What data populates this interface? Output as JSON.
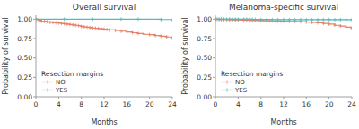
{
  "chart_data": [
    {
      "type": "step",
      "title": "Overall survival",
      "x_label": "Months",
      "y_label": "Probability of survival",
      "legend_title": "Resection margins",
      "legend": "lower left",
      "grid": false,
      "xlim": [
        0,
        24
      ],
      "ylim": [
        0.0,
        1.05
      ],
      "xticks": [
        0,
        4,
        8,
        12,
        16,
        20,
        24
      ],
      "yticks": [
        {
          "value": 0.0,
          "label": "0.00"
        },
        0.25,
        {
          "value": 0.5,
          "label": "0.50"
        },
        0.75,
        {
          "value": 1.0,
          "label": "1.00"
        }
      ],
      "series": [
        {
          "name": "NO",
          "color": "#E8816A",
          "marker": "+",
          "x": [
            0,
            0.5,
            1,
            1.5,
            2,
            2.5,
            3,
            3.5,
            4,
            4.5,
            5,
            5.5,
            6,
            6.5,
            7,
            7.5,
            8,
            8.5,
            9,
            9.5,
            10,
            10.5,
            11,
            11.5,
            12,
            12.5,
            13,
            14,
            15,
            16,
            17,
            18,
            19,
            20,
            21,
            22,
            23,
            24
          ],
          "values": [
            1.0,
            0.985,
            0.975,
            0.97,
            0.965,
            0.96,
            0.957,
            0.953,
            0.95,
            0.945,
            0.94,
            0.935,
            0.93,
            0.925,
            0.92,
            0.915,
            0.905,
            0.9,
            0.895,
            0.89,
            0.885,
            0.882,
            0.878,
            0.875,
            0.87,
            0.865,
            0.86,
            0.855,
            0.845,
            0.835,
            0.825,
            0.815,
            0.805,
            0.8,
            0.79,
            0.78,
            0.77,
            0.755
          ]
        },
        {
          "name": "YES",
          "color": "#4DBDBD",
          "marker": "+",
          "x": [
            0,
            5,
            10,
            15,
            18,
            22,
            24
          ],
          "values": [
            1.0,
            1.0,
            1.0,
            1.0,
            1.0,
            0.995,
            0.985
          ]
        }
      ]
    },
    {
      "type": "step",
      "title": "Melanoma-specific survival",
      "x_label": "Months",
      "y_label": "Probability of survival",
      "legend_title": "Resection margins",
      "legend": "lower left",
      "grid": false,
      "xlim": [
        0,
        24
      ],
      "ylim": [
        0.0,
        1.05
      ],
      "xticks": [
        0,
        4,
        8,
        12,
        16,
        20,
        24
      ],
      "yticks": [
        {
          "value": 0.0,
          "label": "0.00"
        },
        0.25,
        {
          "value": 0.5,
          "label": "0.50"
        },
        0.75,
        {
          "value": 1.0,
          "label": "1.00"
        }
      ],
      "series": [
        {
          "name": "NO",
          "color": "#E8816A",
          "marker": "+",
          "x": [
            0,
            0.3,
            0.7,
            1.0,
            1.5,
            2,
            2.5,
            3,
            3.5,
            4,
            4.5,
            5,
            5.5,
            6,
            6.5,
            7,
            7.5,
            8,
            8.5,
            9,
            9.5,
            10,
            10.5,
            11,
            11.5,
            12,
            13,
            14,
            15,
            16,
            17,
            18,
            19,
            20,
            21,
            22,
            23,
            24
          ],
          "values": [
            1.0,
            0.998,
            0.997,
            0.996,
            0.995,
            0.994,
            0.993,
            0.992,
            0.991,
            0.99,
            0.989,
            0.988,
            0.987,
            0.986,
            0.985,
            0.984,
            0.983,
            0.982,
            0.981,
            0.98,
            0.979,
            0.978,
            0.977,
            0.976,
            0.975,
            0.974,
            0.972,
            0.97,
            0.967,
            0.963,
            0.958,
            0.952,
            0.945,
            0.935,
            0.92,
            0.91,
            0.895,
            0.88
          ]
        },
        {
          "name": "YES",
          "color": "#4DBDBD",
          "marker": "+",
          "x": [
            0,
            0.5,
            1,
            1.5,
            2,
            2.5,
            3,
            3.5,
            4,
            4.5,
            5,
            5.5,
            6,
            6.5,
            7,
            7.5,
            8,
            9,
            10,
            11,
            12,
            13,
            14,
            15,
            16,
            17,
            18,
            19,
            20,
            21,
            22,
            23,
            24
          ],
          "values": [
            1.0,
            1.0,
            1.0,
            1.0,
            1.0,
            1.0,
            1.0,
            1.0,
            1.0,
            0.9995,
            0.999,
            0.9988,
            0.9985,
            0.998,
            0.997,
            0.997,
            0.996,
            0.996,
            0.995,
            0.9948,
            0.9945,
            0.9942,
            0.994,
            0.994,
            0.994,
            0.994,
            0.994,
            0.994,
            0.994,
            0.994,
            0.994,
            0.994,
            0.992
          ]
        }
      ]
    }
  ]
}
